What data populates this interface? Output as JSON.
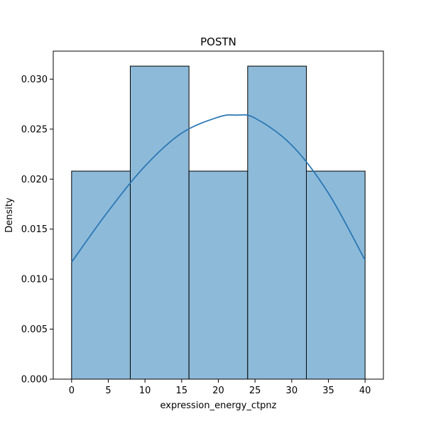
{
  "chart_data": {
    "type": "bar",
    "title": "POSTN",
    "xlabel": "expression_energy_ctpnz",
    "ylabel": "Density",
    "xlim": [
      -2.5,
      42.5
    ],
    "ylim": [
      0,
      0.0328
    ],
    "xticks": [
      0,
      5,
      10,
      15,
      20,
      25,
      30,
      35,
      40
    ],
    "xtick_labels": [
      "0",
      "5",
      "10",
      "15",
      "20",
      "25",
      "30",
      "35",
      "40"
    ],
    "yticks": [
      0,
      0.005,
      0.01,
      0.015,
      0.02,
      0.025,
      0.03
    ],
    "ytick_labels": [
      "0.000",
      "0.005",
      "0.010",
      "0.015",
      "0.020",
      "0.025",
      "0.030"
    ],
    "bins": [
      {
        "x0": 0,
        "x1": 8,
        "density": 0.0208
      },
      {
        "x0": 8,
        "x1": 16,
        "density": 0.0313
      },
      {
        "x0": 16,
        "x1": 24,
        "density": 0.0208
      },
      {
        "x0": 24,
        "x1": 32,
        "density": 0.0313
      },
      {
        "x0": 32,
        "x1": 40,
        "density": 0.0208
      }
    ],
    "kde": {
      "x": [
        0,
        5,
        10,
        15,
        20,
        22.5,
        25,
        30,
        35,
        40
      ],
      "y": [
        0.0117,
        0.0168,
        0.0213,
        0.0246,
        0.0262,
        0.0264,
        0.0261,
        0.0234,
        0.0186,
        0.0119
      ]
    },
    "grid": false,
    "colors": {
      "bar_fill": "#8ebad9",
      "bar_edge": "#000000",
      "kde_line": "#2a78b5"
    }
  }
}
